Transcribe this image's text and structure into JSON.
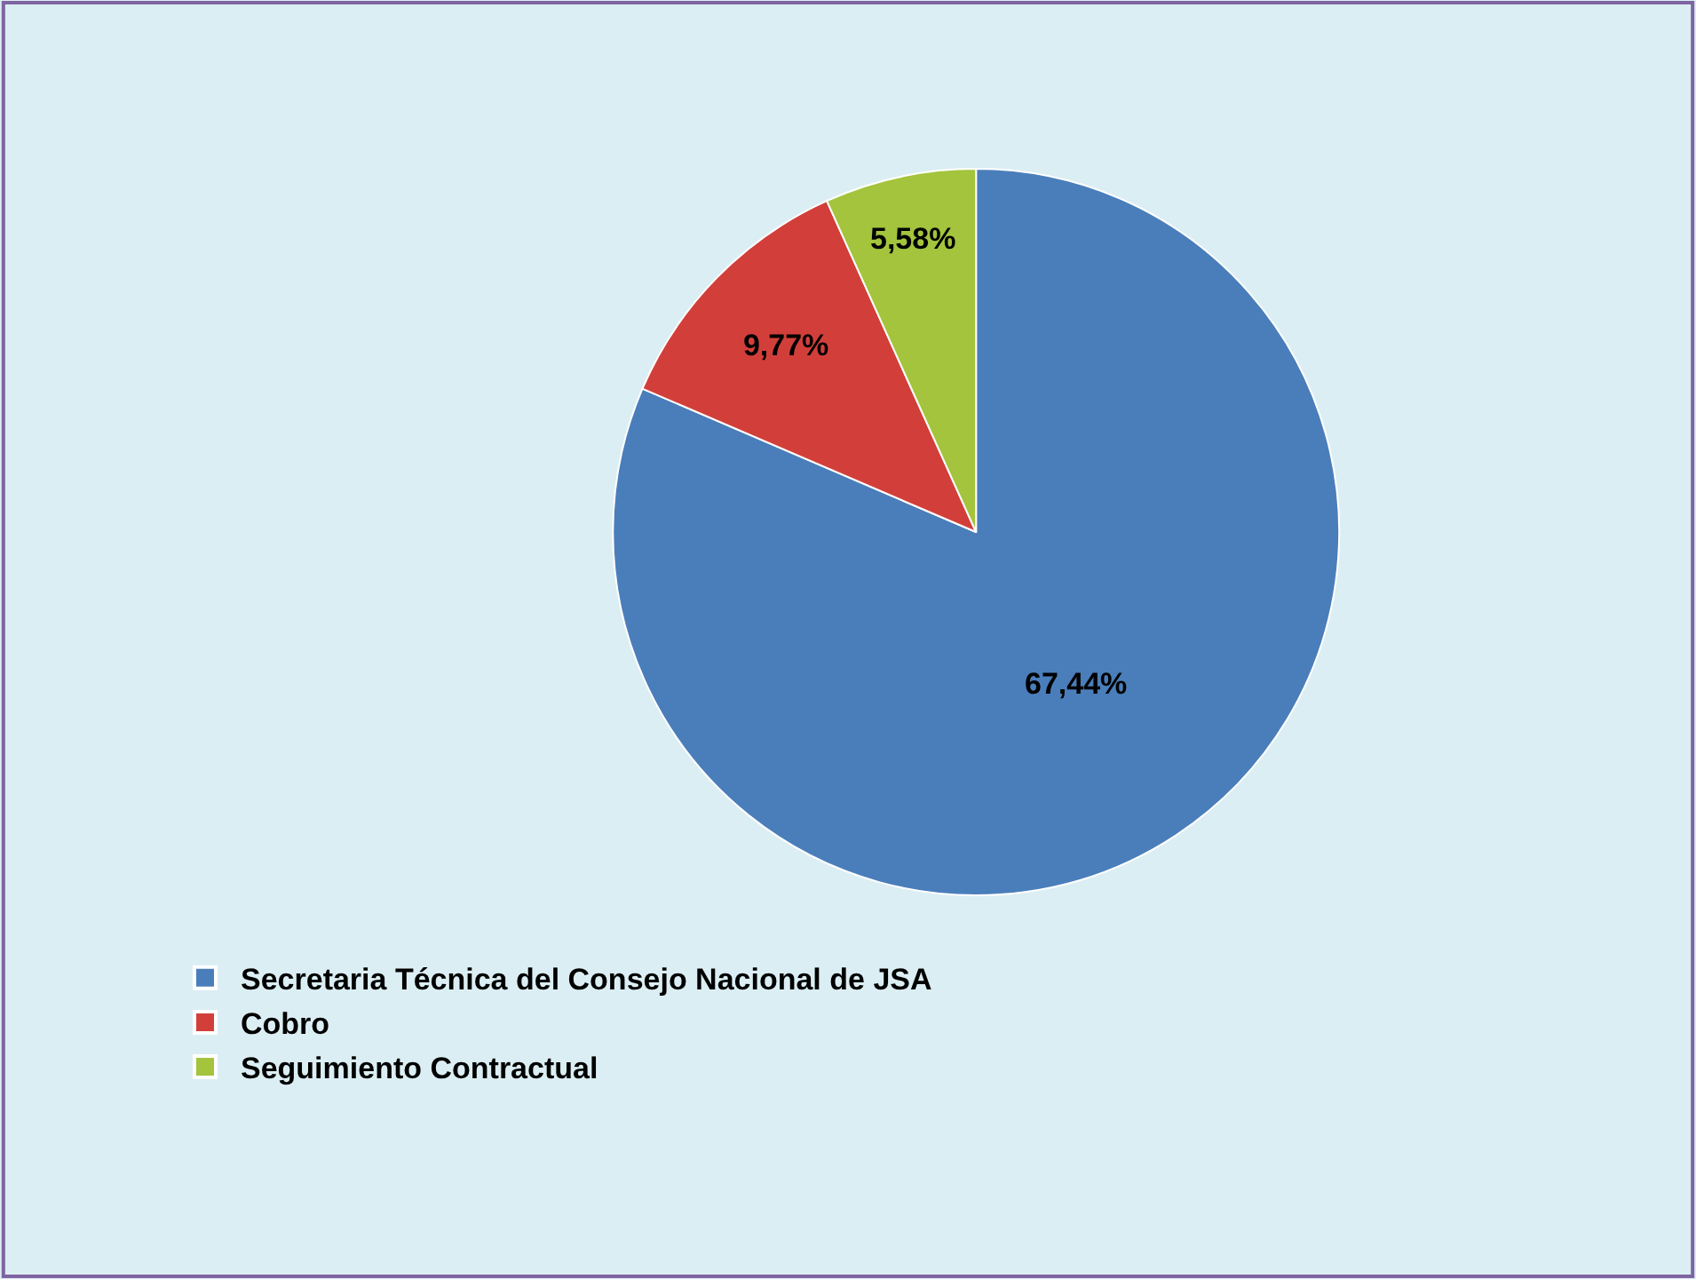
{
  "chart_data": {
    "type": "pie",
    "categories": [
      "Secretaria Técnica del Consejo Nacional de JSA",
      "Cobro",
      "Seguimiento Contractual"
    ],
    "values": [
      67.44,
      9.77,
      5.58
    ],
    "value_labels": [
      "67,44%",
      "9,77%",
      "5,58%"
    ],
    "colors": [
      "#4a7ebb",
      "#d23f3a",
      "#a3c43c"
    ],
    "legend": "bottom left"
  }
}
